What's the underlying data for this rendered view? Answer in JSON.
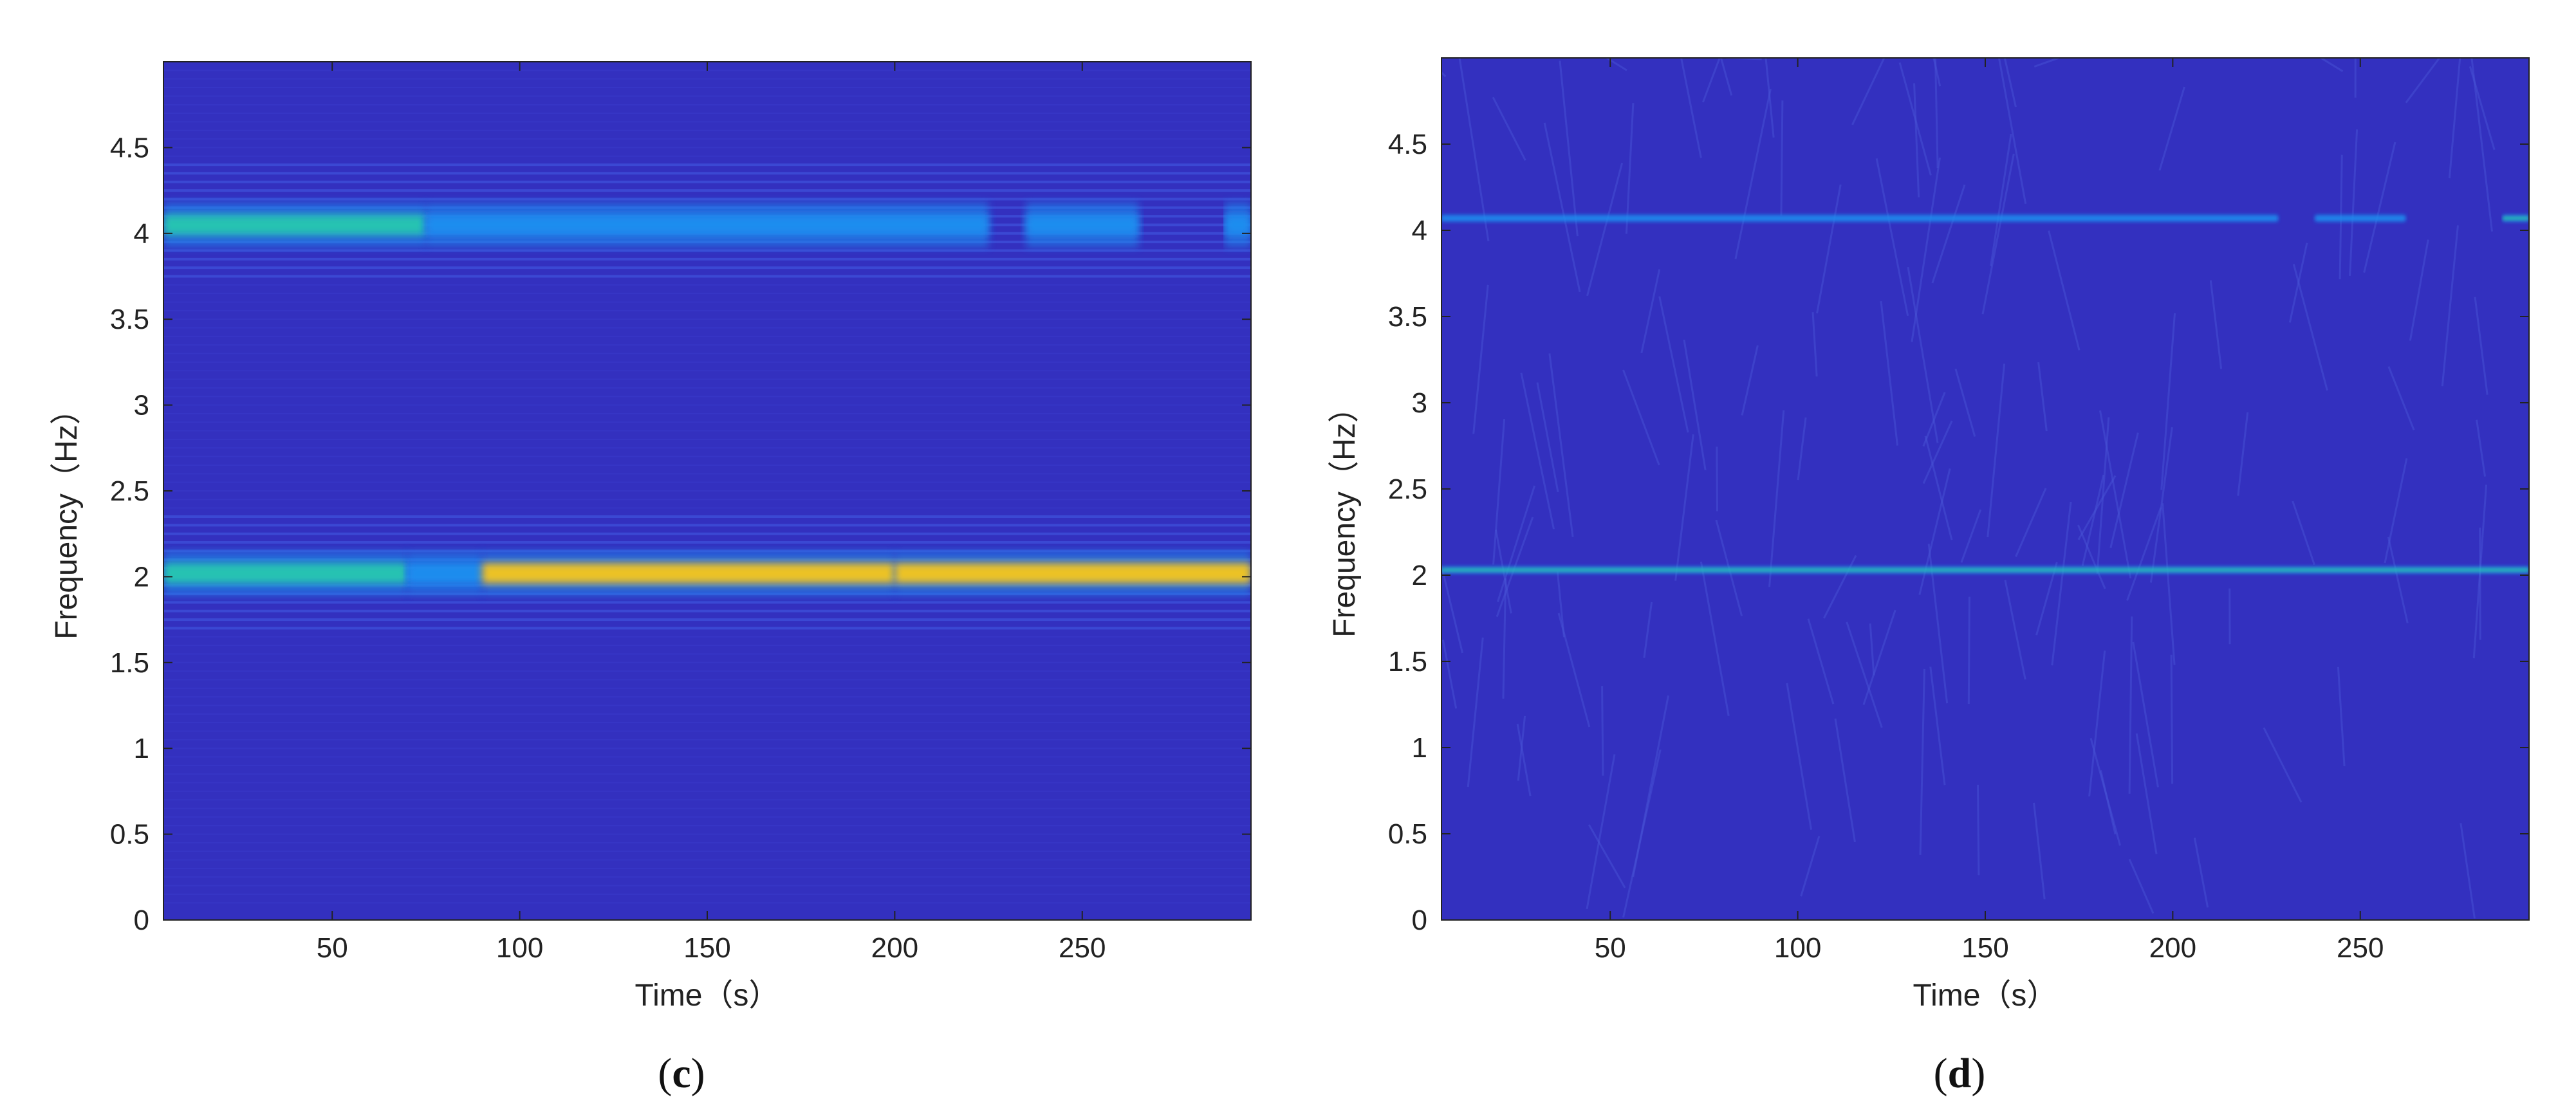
{
  "colors": {
    "background": "#3330bf",
    "band_low": "#1f8ff0",
    "band_mid": "#27c8b0",
    "band_high": "#f7c81a",
    "axis": "#222222"
  },
  "chart_data": [
    {
      "type": "heatmap",
      "panel_label": "c",
      "xlabel": "Time（s）",
      "ylabel": "Frequency（Hz）",
      "xlim": [
        5,
        295
      ],
      "ylim": [
        0,
        5
      ],
      "xticks": [
        "50",
        "100",
        "150",
        "200",
        "250"
      ],
      "xtick_values": [
        50,
        100,
        150,
        200,
        250
      ],
      "yticks": [
        "0",
        "0.5",
        "1",
        "1.5",
        "2",
        "2.5",
        "3",
        "3.5",
        "4",
        "4.5"
      ],
      "ytick_values": [
        0,
        0.5,
        1,
        1.5,
        2,
        2.5,
        3,
        3.5,
        4,
        4.5
      ],
      "colormap": "parula",
      "grid": false,
      "bands": [
        {
          "frequency": 4.05,
          "bandwidth": 0.12,
          "segments": [
            {
              "t_start": 5,
              "t_end": 75,
              "intensity": 0.55
            },
            {
              "t_start": 75,
              "t_end": 225,
              "intensity": 0.35
            },
            {
              "t_start": 235,
              "t_end": 265,
              "intensity": 0.3
            },
            {
              "t_start": 288,
              "t_end": 295,
              "intensity": 0.4
            }
          ]
        },
        {
          "frequency": 2.02,
          "bandwidth": 0.12,
          "segments": [
            {
              "t_start": 5,
              "t_end": 70,
              "intensity": 0.6
            },
            {
              "t_start": 70,
              "t_end": 90,
              "intensity": 0.45
            },
            {
              "t_start": 90,
              "t_end": 200,
              "intensity": 0.85
            },
            {
              "t_start": 200,
              "t_end": 295,
              "intensity": 0.95
            }
          ]
        }
      ]
    },
    {
      "type": "heatmap",
      "panel_label": "d",
      "xlabel": "Time（s）",
      "ylabel": "Frequency（Hz）",
      "xlim": [
        5,
        295
      ],
      "ylim": [
        0,
        5
      ],
      "xticks": [
        "50",
        "100",
        "150",
        "200",
        "250"
      ],
      "xtick_values": [
        50,
        100,
        150,
        200,
        250
      ],
      "yticks": [
        "0",
        "0.5",
        "1",
        "1.5",
        "2",
        "2.5",
        "3",
        "3.5",
        "4",
        "4.5"
      ],
      "ytick_values": [
        0,
        0.5,
        1,
        1.5,
        2,
        2.5,
        3,
        3.5,
        4,
        4.5
      ],
      "colormap": "parula",
      "grid": false,
      "bands": [
        {
          "frequency": 4.07,
          "bandwidth": 0.02,
          "segments": [
            {
              "t_start": 5,
              "t_end": 228,
              "intensity": 0.4
            },
            {
              "t_start": 238,
              "t_end": 262,
              "intensity": 0.35
            },
            {
              "t_start": 288,
              "t_end": 295,
              "intensity": 0.5
            }
          ]
        },
        {
          "frequency": 2.03,
          "bandwidth": 0.02,
          "segments": [
            {
              "t_start": 5,
              "t_end": 295,
              "intensity": 0.55
            }
          ]
        }
      ]
    }
  ]
}
